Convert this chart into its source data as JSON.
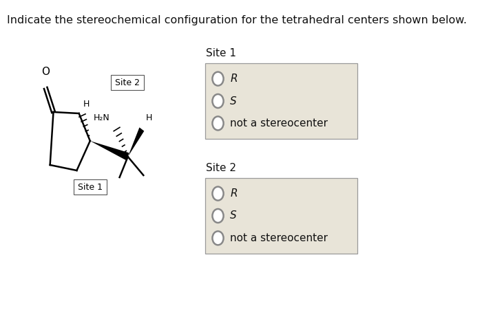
{
  "title": "Indicate the stereochemical configuration for the tetrahedral centers shown below.",
  "title_fontsize": 11.5,
  "background_color": "#ffffff",
  "box_color": "#e8e4d8",
  "box_edge_color": "#999999",
  "site1_label": "Site 1",
  "site2_label": "Site 2",
  "options": [
    "R",
    "S",
    "not a stereocenter"
  ],
  "circle_color": "#ffffff",
  "circle_edge_color": "#888888",
  "text_color": "#111111",
  "site_label_fontsize": 11,
  "option_fontsize": 11
}
